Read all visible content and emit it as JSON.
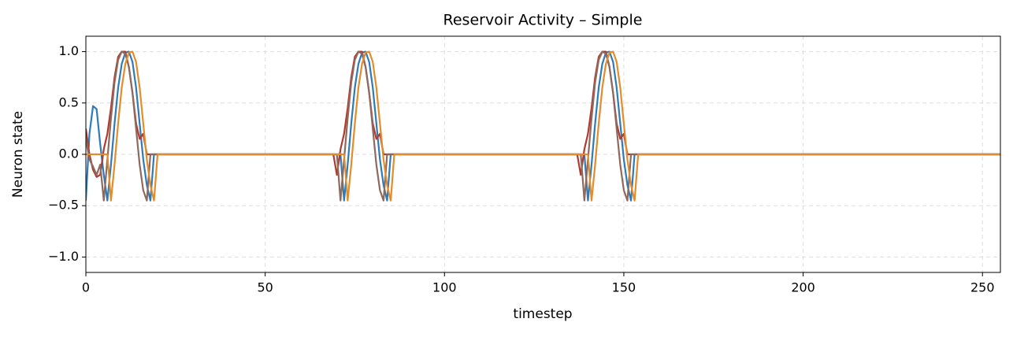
{
  "chart_data": {
    "type": "line",
    "title": "Reservoir Activity – Simple",
    "xlabel": "timestep",
    "ylabel": "Neuron state",
    "x": [
      0,
      1,
      2,
      3,
      4,
      5,
      6,
      7,
      8,
      9,
      10,
      11,
      12,
      13,
      14,
      15,
      16,
      17,
      18,
      19,
      20,
      21,
      66,
      67,
      68,
      69,
      70,
      71,
      72,
      73,
      74,
      75,
      76,
      77,
      78,
      79,
      80,
      81,
      82,
      83,
      84,
      85,
      86,
      87,
      134,
      135,
      136,
      137,
      138,
      139,
      140,
      141,
      142,
      143,
      144,
      145,
      146,
      147,
      148,
      149,
      150,
      151,
      152,
      153,
      154,
      155,
      255
    ],
    "series": [
      {
        "color": "#2f7bb8",
        "values": [
          -0.45,
          0.2,
          0.47,
          0.44,
          0.1,
          -0.2,
          -0.45,
          -0.1,
          0.3,
          0.65,
          0.88,
          0.99,
          1.0,
          0.9,
          0.65,
          0.3,
          -0.05,
          -0.3,
          -0.45,
          0,
          0,
          0,
          0,
          0,
          0,
          0,
          0,
          0,
          -0.45,
          -0.1,
          0.3,
          0.65,
          0.88,
          0.99,
          1.0,
          0.9,
          0.65,
          0.3,
          -0.05,
          -0.3,
          -0.45,
          0,
          0,
          0,
          0,
          0,
          0,
          0,
          0,
          0,
          -0.45,
          -0.1,
          0.3,
          0.65,
          0.88,
          0.99,
          1.0,
          0.9,
          0.65,
          0.3,
          -0.05,
          -0.3,
          -0.45,
          0,
          0,
          0,
          0
        ]
      },
      {
        "color": "#b13a2d",
        "values": [
          0.25,
          0,
          -0.15,
          -0.22,
          -0.2,
          0.05,
          0.2,
          0.45,
          0.75,
          0.95,
          1.0,
          1.0,
          0.85,
          0.6,
          0.3,
          0.15,
          0.2,
          0,
          0,
          0,
          0,
          0,
          0,
          0,
          0,
          0,
          -0.2,
          0.05,
          0.2,
          0.45,
          0.75,
          0.95,
          1.0,
          1.0,
          0.85,
          0.6,
          0.3,
          0.15,
          0.2,
          0,
          0,
          0,
          0,
          0,
          0,
          0,
          0,
          0,
          -0.2,
          0.05,
          0.2,
          0.45,
          0.75,
          0.95,
          1.0,
          1.0,
          0.85,
          0.6,
          0.3,
          0.15,
          0.2,
          0,
          0,
          0,
          0,
          0,
          0
        ]
      },
      {
        "color": "#8e6a5e",
        "values": [
          0.15,
          -0.05,
          -0.12,
          -0.2,
          -0.1,
          -0.45,
          -0.05,
          0.35,
          0.7,
          0.92,
          1.0,
          0.98,
          0.85,
          0.6,
          0.25,
          -0.1,
          -0.35,
          -0.45,
          0,
          0,
          0,
          0,
          0,
          0,
          0,
          0,
          0,
          -0.45,
          -0.05,
          0.35,
          0.7,
          0.92,
          1.0,
          0.98,
          0.85,
          0.6,
          0.25,
          -0.1,
          -0.35,
          -0.45,
          0,
          0,
          0,
          0,
          0,
          0,
          0,
          0,
          0,
          -0.45,
          -0.05,
          0.35,
          0.7,
          0.92,
          1.0,
          0.98,
          0.85,
          0.6,
          0.25,
          -0.1,
          -0.35,
          -0.45,
          0,
          0,
          0,
          0,
          0
        ]
      },
      {
        "color": "#e38c2c",
        "values": [
          0,
          0,
          0,
          0,
          0,
          0,
          0,
          -0.45,
          -0.1,
          0.3,
          0.65,
          0.88,
          0.99,
          1.0,
          0.9,
          0.65,
          0.3,
          -0.05,
          -0.3,
          -0.45,
          0,
          0,
          0,
          0,
          0,
          0,
          0,
          0,
          0,
          -0.45,
          -0.1,
          0.3,
          0.65,
          0.88,
          0.99,
          1.0,
          0.9,
          0.65,
          0.3,
          -0.05,
          -0.3,
          -0.45,
          0,
          0,
          0,
          0,
          0,
          0,
          0,
          0,
          0,
          -0.45,
          -0.1,
          0.3,
          0.65,
          0.88,
          0.99,
          1.0,
          0.9,
          0.65,
          0.3,
          -0.05,
          -0.3,
          -0.45,
          0,
          0,
          0
        ]
      }
    ],
    "xlim": [
      0,
      255
    ],
    "xticks": [
      0,
      50,
      100,
      150,
      200,
      250
    ],
    "ylim": [
      -1.15,
      1.15
    ],
    "yticks": [
      {
        "value": -1,
        "label": "−1.0"
      },
      {
        "value": -0.5,
        "label": "−0.5"
      },
      {
        "value": 0,
        "label": "0.0"
      },
      0.5,
      {
        "value": 1,
        "label": "1.0"
      }
    ],
    "grid": true
  }
}
